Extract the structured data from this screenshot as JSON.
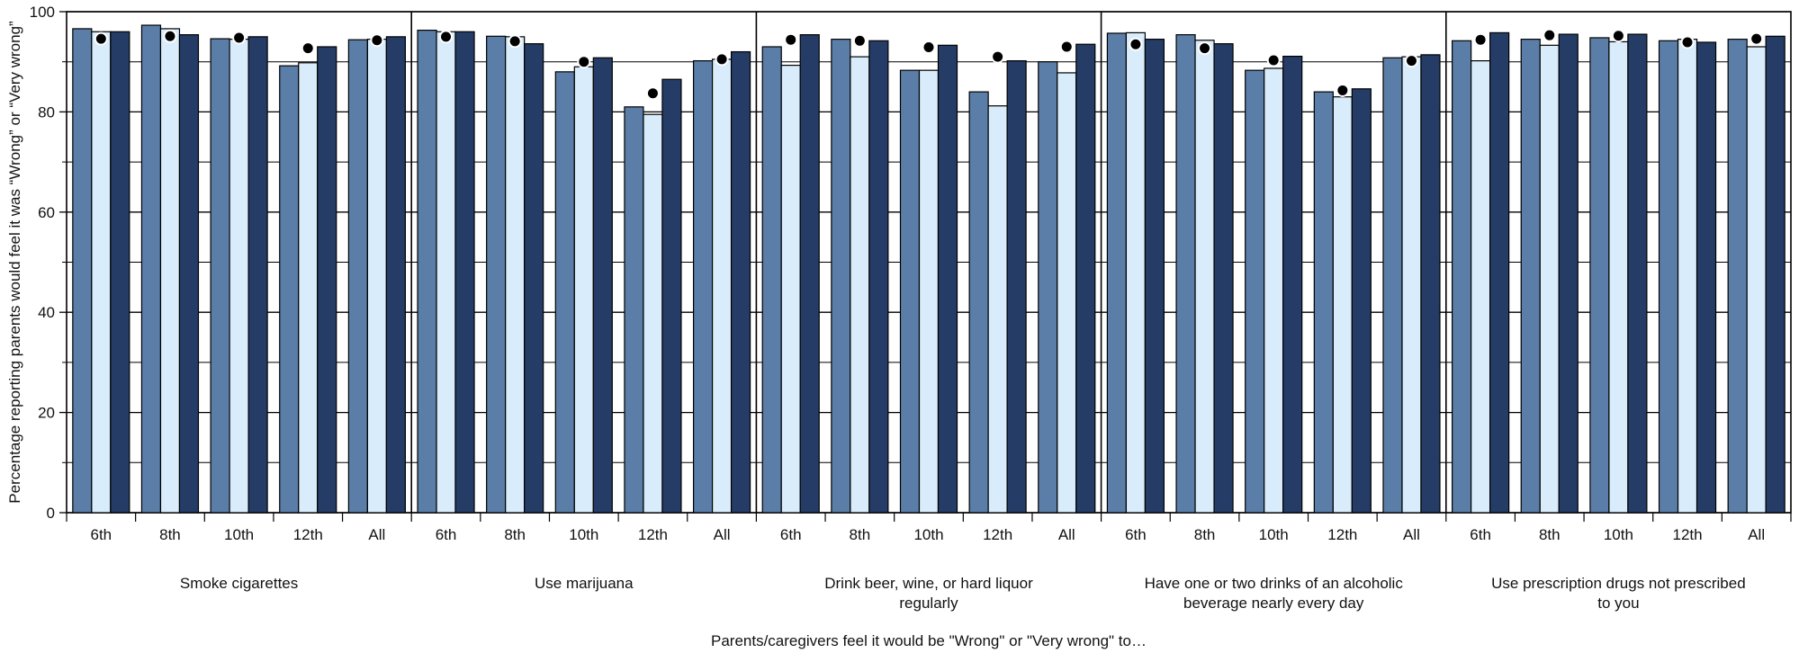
{
  "chart_data": {
    "type": "bar",
    "xlabel": "Parents/caregivers feel it would be \"Wrong\" or \"Very wrong\" to…",
    "ylabel": "Percentage reporting parents would feel it was “Wrong” or “Very wrong”",
    "ylim": [
      0,
      100
    ],
    "yticks": [
      "0",
      "20",
      "40",
      "60",
      "80",
      "100"
    ],
    "grid": true,
    "grade_labels": [
      "6th",
      "8th",
      "10th",
      "12th",
      "All"
    ],
    "groups": [
      {
        "label": "Smoke cigarettes",
        "bars": [
          [
            96.6,
            96.0,
            96.0
          ],
          [
            97.3,
            96.6,
            95.4
          ],
          [
            94.6,
            94.5,
            95.0
          ],
          [
            89.2,
            89.8,
            93.0
          ],
          [
            94.4,
            94.5,
            95.0
          ]
        ],
        "dots": [
          94.6,
          95.1,
          94.8,
          92.7,
          94.3
        ]
      },
      {
        "label": "Use marijuana",
        "bars": [
          [
            96.3,
            96.0,
            96.0
          ],
          [
            95.1,
            95.0,
            93.6
          ],
          [
            88.0,
            89.0,
            90.8
          ],
          [
            81.0,
            79.5,
            86.5
          ],
          [
            90.2,
            90.5,
            92.0
          ]
        ],
        "dots": [
          95.0,
          94.1,
          90.0,
          83.7,
          90.5
        ]
      },
      {
        "label": "Drink beer, wine, or hard liquor regularly",
        "bars": [
          [
            93.0,
            89.3,
            95.4
          ],
          [
            94.5,
            91.0,
            94.2
          ],
          [
            88.3,
            88.3,
            93.3
          ],
          [
            84.0,
            81.2,
            90.2
          ],
          [
            90.0,
            87.8,
            93.5
          ]
        ],
        "dots": [
          94.4,
          94.2,
          92.9,
          91.0,
          93.0
        ]
      },
      {
        "label": "Have one or two drinks of an alcoholic beverage nearly every day",
        "bars": [
          [
            95.7,
            95.8,
            94.5
          ],
          [
            95.4,
            94.3,
            93.6
          ],
          [
            88.3,
            88.7,
            91.1
          ],
          [
            84.0,
            83.0,
            84.6
          ],
          [
            90.8,
            91.0,
            91.4
          ]
        ],
        "dots": [
          93.5,
          92.7,
          90.3,
          84.3,
          90.2
        ]
      },
      {
        "label": "Use prescription drugs not prescribed to you",
        "bars": [
          [
            94.2,
            90.2,
            95.8
          ],
          [
            94.5,
            93.3,
            95.5
          ],
          [
            94.8,
            94.0,
            95.5
          ],
          [
            94.2,
            94.5,
            93.9
          ],
          [
            94.5,
            93.0,
            95.1
          ]
        ],
        "dots": [
          94.4,
          95.3,
          95.2,
          93.9,
          94.6
        ]
      }
    ],
    "series_colors": [
      "#5b7ea8",
      "#d9ecfb",
      "#243c66"
    ],
    "dot_color": "#000000"
  }
}
